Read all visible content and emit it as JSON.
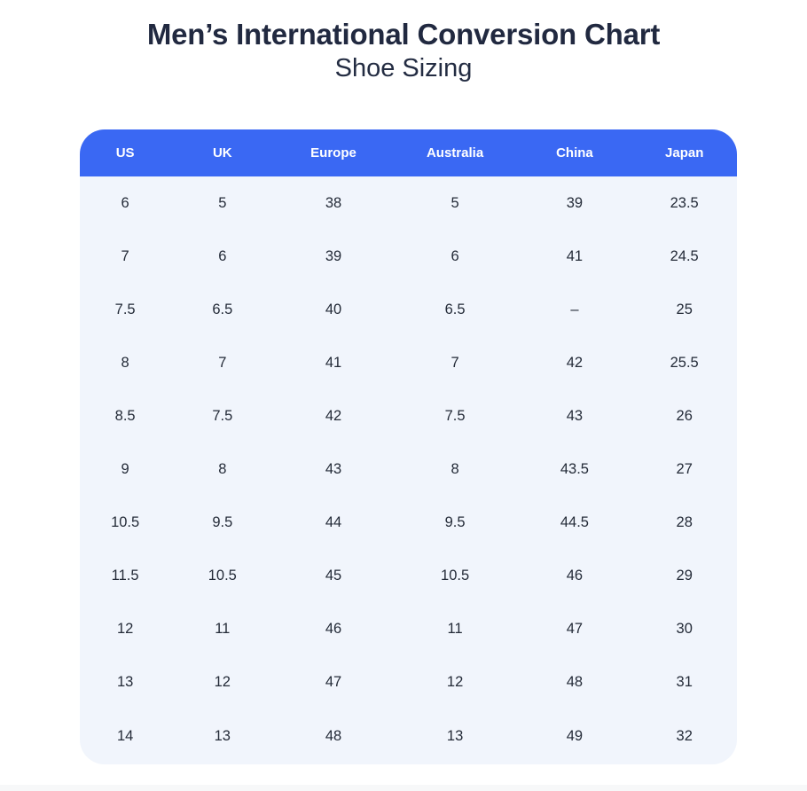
{
  "page": {
    "title": "Men’s International Conversion Chart",
    "subtitle": "Shoe Sizing"
  },
  "chart_data": {
    "type": "table",
    "title": "Men’s International Conversion Chart",
    "subtitle": "Shoe Sizing",
    "columns": [
      "US",
      "UK",
      "Europe",
      "Australia",
      "China",
      "Japan"
    ],
    "rows": [
      [
        "6",
        "5",
        "38",
        "5",
        "39",
        "23.5"
      ],
      [
        "7",
        "6",
        "39",
        "6",
        "41",
        "24.5"
      ],
      [
        "7.5",
        "6.5",
        "40",
        "6.5",
        "–",
        "25"
      ],
      [
        "8",
        "7",
        "41",
        "7",
        "42",
        "25.5"
      ],
      [
        "8.5",
        "7.5",
        "42",
        "7.5",
        "43",
        "26"
      ],
      [
        "9",
        "8",
        "43",
        "8",
        "43.5",
        "27"
      ],
      [
        "10.5",
        "9.5",
        "44",
        "9.5",
        "44.5",
        "28"
      ],
      [
        "11.5",
        "10.5",
        "45",
        "10.5",
        "46",
        "29"
      ],
      [
        "12",
        "11",
        "46",
        "11",
        "47",
        "30"
      ],
      [
        "13",
        "12",
        "47",
        "12",
        "48",
        "31"
      ],
      [
        "14",
        "13",
        "48",
        "13",
        "49",
        "32"
      ]
    ],
    "column_widths_pct": [
      13.8,
      15.8,
      18.0,
      19.0,
      17.4,
      16.0
    ]
  },
  "colors": {
    "header_bg": "#3A68F3",
    "header_text": "#FFFFFF",
    "body_bg": "#F1F5FC",
    "cell_text": "#242B38",
    "title_text": "#212940"
  }
}
